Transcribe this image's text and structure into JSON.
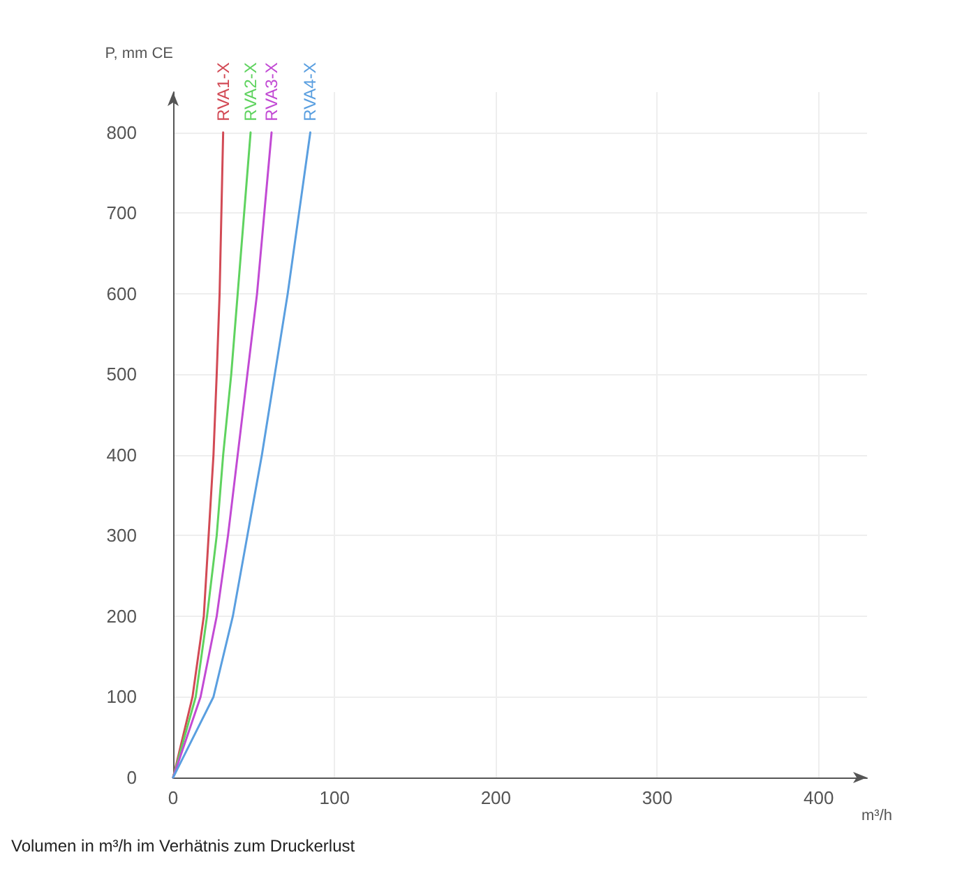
{
  "chart_data": {
    "type": "line",
    "xlabel": "m³/h",
    "ylabel": "P, mm CE",
    "x": [
      0,
      12,
      19,
      22,
      25,
      27,
      28.8,
      31
    ],
    "series": [
      {
        "name": "RVA1-X",
        "color": "#d24a55",
        "values": [
          0,
          100,
          200,
          300,
          400,
          500,
          600,
          800
        ]
      },
      {
        "name": "RVA2-X",
        "color": "#5fd35f",
        "x": [
          0,
          14,
          21,
          27,
          31,
          36,
          40,
          48
        ],
        "values": [
          0,
          100,
          200,
          300,
          400,
          500,
          600,
          800
        ]
      },
      {
        "name": "RVA3-X",
        "color": "#c24ad4",
        "x": [
          0,
          17,
          27,
          34,
          40,
          46,
          52,
          61
        ],
        "values": [
          0,
          100,
          200,
          300,
          400,
          500,
          600,
          800
        ]
      },
      {
        "name": "RVA4-X",
        "color": "#5a9fe0",
        "x": [
          0,
          25,
          37,
          46,
          55,
          63,
          71,
          85
        ],
        "values": [
          0,
          100,
          200,
          300,
          400,
          500,
          600,
          800
        ]
      }
    ],
    "xlim": [
      0,
      430
    ],
    "xticks": [
      0,
      100,
      200,
      300,
      400
    ],
    "ylim": [
      0,
      850
    ],
    "yticks": [
      0,
      100,
      200,
      300,
      400,
      500,
      600,
      700,
      800
    ],
    "grid": true,
    "legend": false,
    "marker": "none",
    "line_style": "solid",
    "annotations": [
      "Volumen in m³/h im Verhätnis zum Druckerlust"
    ]
  }
}
